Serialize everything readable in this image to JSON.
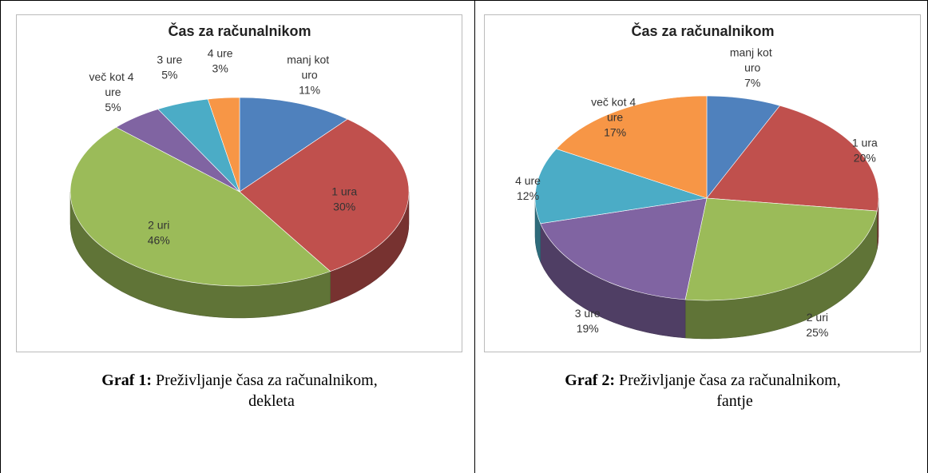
{
  "chart_data": [
    {
      "type": "pie3d",
      "title": "Čas za računalnikom",
      "categories": [
        "manj kot uro",
        "1 ura",
        "2 uri",
        "več kot 4 ure",
        "3 ure",
        "4 ure"
      ],
      "values": [
        11,
        30,
        46,
        5,
        5,
        3
      ],
      "value_labels": [
        "11%",
        "30%",
        "46%",
        "5%",
        "5%",
        "3%"
      ],
      "colors": [
        "#4f81bd",
        "#c0504d",
        "#9bbb59",
        "#8064a2",
        "#4bacc6",
        "#f79646"
      ]
    },
    {
      "type": "pie3d",
      "title": "Čas za računalnikom",
      "categories": [
        "manj kot uro",
        "1 ura",
        "2 uri",
        "3 ure",
        "4 ure",
        "več kot 4 ure"
      ],
      "values": [
        7,
        20,
        25,
        19,
        12,
        17
      ],
      "value_labels": [
        "7%",
        "20%",
        "25%",
        "19%",
        "12%",
        "17%"
      ],
      "colors": [
        "#4f81bd",
        "#c0504d",
        "#9bbb59",
        "#8064a2",
        "#4bacc6",
        "#f79646"
      ]
    }
  ],
  "captions": [
    {
      "label": "Graf 1:",
      "text": "Preživljanje časa za računalnikom, dekleta"
    },
    {
      "label": "Graf 2:",
      "text": "Preživljanje časa za računalnikom, fantje"
    }
  ]
}
